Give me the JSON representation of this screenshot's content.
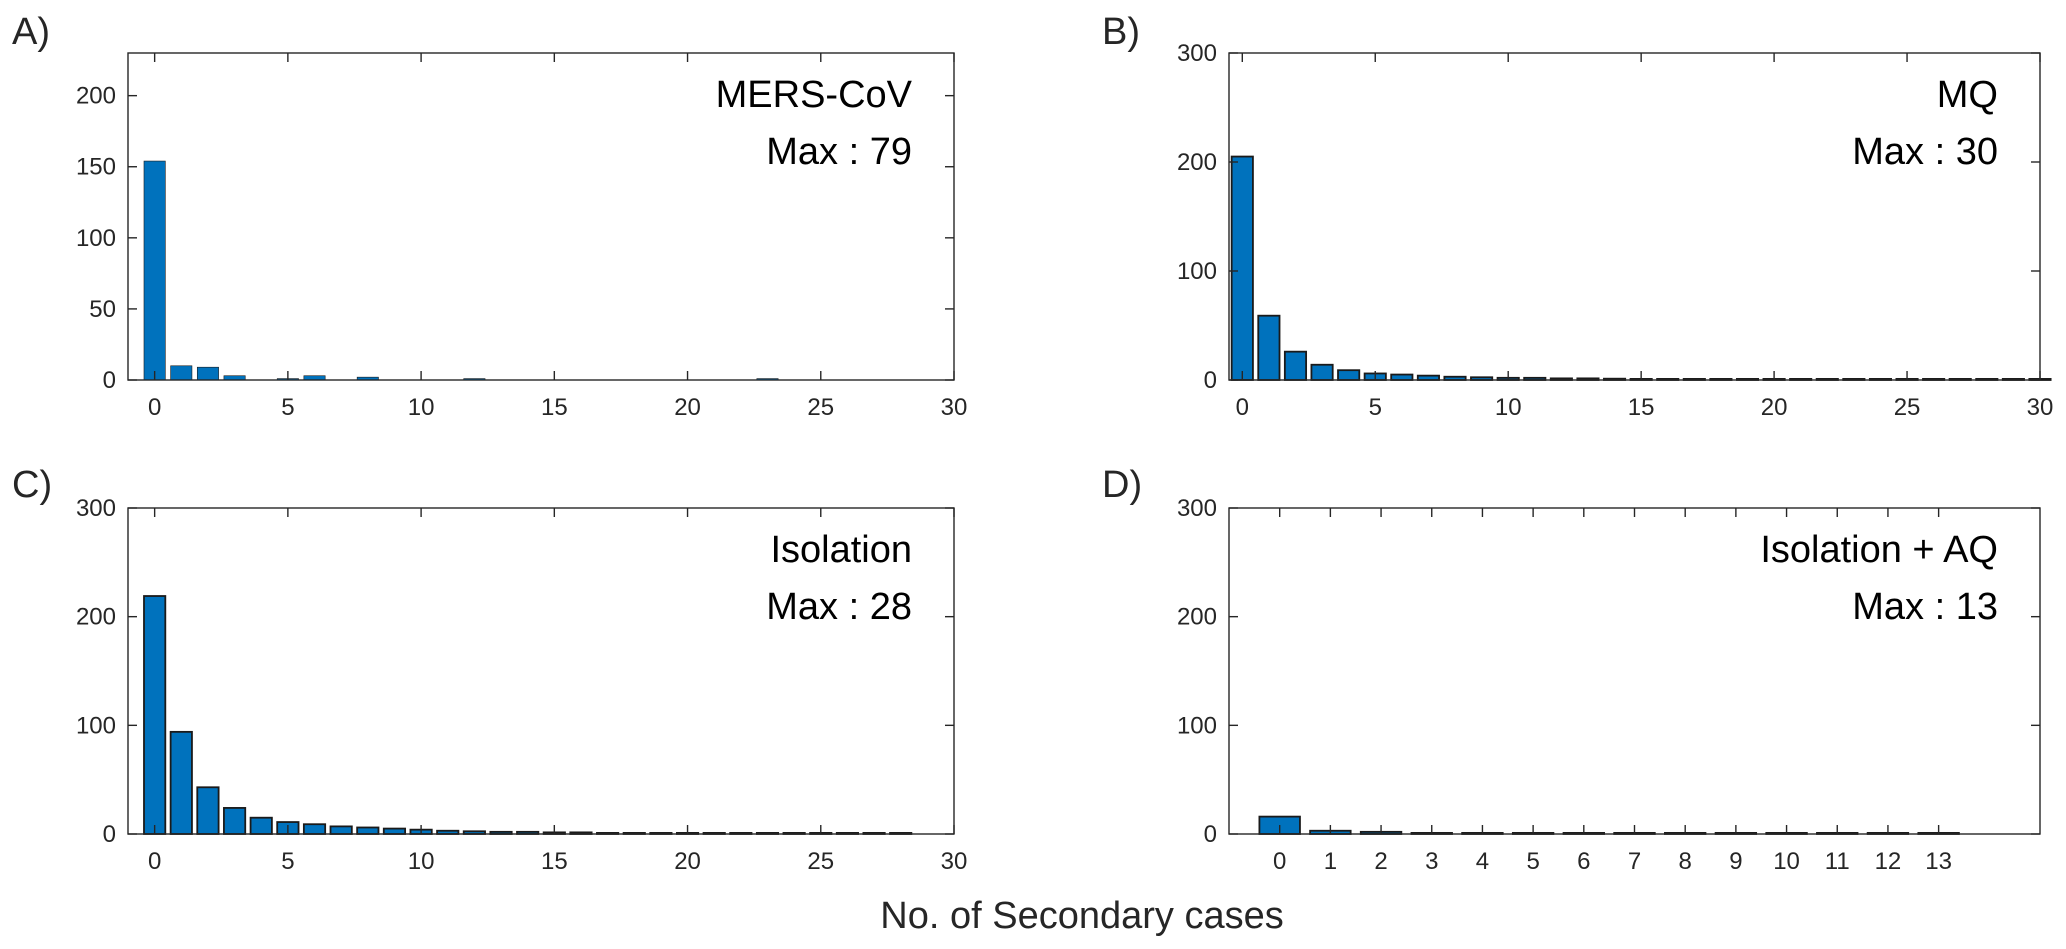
{
  "figure": {
    "xlabel": "No. of Secondary cases"
  },
  "colors": {
    "bar_fill": "#0072bd",
    "bar_edge": "#1a1a1a",
    "axis": "#262626",
    "text": "#262626"
  },
  "chart_data": [
    {
      "type": "bar",
      "panel_label": "A)",
      "title": "MERS-CoV",
      "max_label": "Max : 79",
      "xlim": [
        -1,
        30
      ],
      "ylim": [
        0,
        230
      ],
      "xticks": [
        0,
        5,
        10,
        15,
        20,
        25,
        30
      ],
      "yticks": [
        0,
        50,
        100,
        150,
        200
      ],
      "bar_width": 0.8,
      "bar_edge_width": 0.6,
      "x": [
        0,
        1,
        2,
        3,
        5,
        6,
        8,
        12,
        23
      ],
      "values": [
        154,
        10,
        9,
        3,
        1,
        3,
        2,
        1,
        1
      ]
    },
    {
      "type": "bar",
      "panel_label": "B)",
      "title": "MQ",
      "max_label": "Max : 30",
      "xlim": [
        -0.5,
        30
      ],
      "ylim": [
        0,
        300
      ],
      "xticks": [
        0,
        5,
        10,
        15,
        20,
        25,
        30
      ],
      "yticks": [
        0,
        100,
        200,
        300
      ],
      "bar_width": 0.8,
      "bar_edge_width": 1.8,
      "x": [
        0,
        1,
        2,
        3,
        4,
        5,
        6,
        7,
        8,
        9,
        10,
        11,
        12,
        13,
        14,
        15,
        16,
        17,
        18,
        19,
        20,
        21,
        22,
        23,
        24,
        25,
        26,
        27,
        28,
        29,
        30
      ],
      "values": [
        205,
        59,
        26,
        14,
        9,
        6,
        5,
        4,
        3,
        2.5,
        2,
        2,
        1.5,
        1.5,
        1.2,
        1,
        1,
        1,
        1,
        1,
        1,
        1,
        1,
        1,
        1,
        1,
        1,
        1,
        1,
        1,
        1
      ]
    },
    {
      "type": "bar",
      "panel_label": "C)",
      "title": "Isolation",
      "max_label": "Max : 28",
      "xlim": [
        -1,
        30
      ],
      "ylim": [
        0,
        300
      ],
      "xticks": [
        0,
        5,
        10,
        15,
        20,
        25,
        30
      ],
      "yticks": [
        0,
        100,
        200,
        300
      ],
      "bar_width": 0.8,
      "bar_edge_width": 1.8,
      "x": [
        0,
        1,
        2,
        3,
        4,
        5,
        6,
        7,
        8,
        9,
        10,
        11,
        12,
        13,
        14,
        15,
        16,
        17,
        18,
        19,
        20,
        21,
        22,
        23,
        24,
        25,
        26,
        27,
        28
      ],
      "values": [
        219,
        94,
        43,
        24,
        15,
        11,
        9,
        7,
        6,
        5,
        4,
        3,
        2.5,
        2,
        2,
        1.5,
        1.5,
        1,
        1,
        1,
        1,
        1,
        1,
        1,
        1,
        1,
        1,
        1,
        1
      ]
    },
    {
      "type": "bar",
      "panel_label": "D)",
      "title": "Isolation + AQ",
      "max_label": "Max : 13",
      "xlim": [
        -1,
        15
      ],
      "ylim": [
        0,
        300
      ],
      "xticks": [
        0,
        1,
        2,
        3,
        4,
        5,
        6,
        7,
        8,
        9,
        10,
        11,
        12,
        13
      ],
      "yticks": [
        0,
        100,
        200,
        300
      ],
      "bar_width": 0.8,
      "bar_edge_width": 1.8,
      "x": [
        0,
        1,
        2,
        3,
        4,
        5,
        6,
        7,
        8,
        9,
        10,
        11,
        12,
        13
      ],
      "values": [
        16,
        3,
        2,
        1,
        1,
        1,
        1,
        1,
        1,
        1,
        1,
        1,
        1,
        1
      ]
    }
  ]
}
